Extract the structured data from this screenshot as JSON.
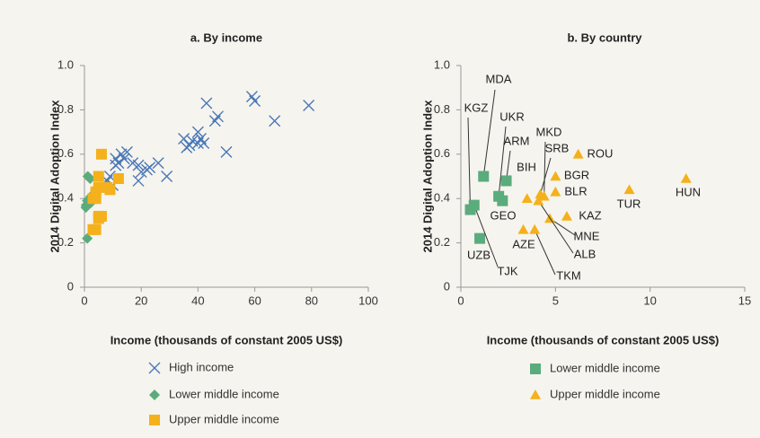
{
  "chart_data": [
    {
      "type": "scatter",
      "title": "a. By income",
      "xlabel": "Income (thousands of constant 2005 US$)",
      "ylabel": "2014 Digital Adoption Index",
      "xlim": [
        0,
        100
      ],
      "xticks": [
        0,
        20,
        40,
        60,
        80,
        100
      ],
      "ylim": [
        0,
        1
      ],
      "yticks": [
        0,
        0.2,
        0.4,
        0.6,
        0.8,
        {
          "value": 1,
          "label": "1.0"
        }
      ],
      "series": [
        {
          "name": "High income",
          "color": "#4a78b8",
          "marker": "x",
          "x": [
            43,
            59,
            60,
            79,
            67,
            47,
            46,
            40,
            35,
            38,
            40,
            41,
            37,
            36,
            42,
            50,
            15,
            13,
            11,
            12,
            11,
            17,
            19,
            22,
            26,
            20,
            19,
            29,
            23,
            9,
            8,
            10,
            14
          ],
          "values": [
            0.83,
            0.86,
            0.84,
            0.82,
            0.75,
            0.77,
            0.75,
            0.7,
            0.67,
            0.66,
            0.65,
            0.67,
            0.64,
            0.63,
            0.65,
            0.61,
            0.61,
            0.6,
            0.58,
            0.56,
            0.55,
            0.56,
            0.55,
            0.53,
            0.56,
            0.52,
            0.48,
            0.5,
            0.54,
            0.5,
            0.48,
            0.46,
            0.58
          ]
        },
        {
          "name": "Lower middle income",
          "color": "#5aac7c",
          "marker": "diamond",
          "x": [
            1,
            0.5,
            0.6,
            1.2,
            2,
            2.3,
            2.2,
            1
          ],
          "values": [
            0.22,
            0.36,
            0.37,
            0.5,
            0.49,
            0.41,
            0.38,
            0.39
          ]
        },
        {
          "name": "Upper middle income",
          "color": "#f4b11b",
          "marker": "square",
          "x": [
            6,
            5,
            5,
            4,
            3,
            4,
            4,
            5,
            5,
            6,
            3,
            4,
            9,
            12,
            8
          ],
          "values": [
            0.6,
            0.5,
            0.45,
            0.42,
            0.4,
            0.4,
            0.43,
            0.32,
            0.31,
            0.32,
            0.26,
            0.26,
            0.44,
            0.49,
            0.45
          ]
        }
      ]
    },
    {
      "type": "scatter",
      "title": "b. By country",
      "xlabel": "Income (thousands of constant 2005 US$)",
      "ylabel": "2014 Digital Adoption Index",
      "xlim": [
        0,
        15
      ],
      "xticks": [
        0,
        5,
        10,
        15
      ],
      "ylim": [
        0,
        1
      ],
      "yticks": [
        0,
        0.2,
        0.4,
        0.6,
        0.8,
        {
          "value": 1,
          "label": "1.0"
        }
      ],
      "series": [
        {
          "name": "Lower middle income",
          "color": "#5aac7c",
          "marker": "square",
          "labels": [
            "KGZ",
            "MDA",
            "UKR",
            "ARM",
            "GEO",
            "UZB",
            "TJK"
          ],
          "x": [
            0.5,
            1.2,
            2.0,
            2.4,
            2.2,
            1.0,
            0.7
          ],
          "values": [
            0.35,
            0.5,
            0.41,
            0.48,
            0.39,
            0.22,
            0.37
          ]
        },
        {
          "name": "Upper middle income",
          "color": "#f4b11b",
          "marker": "triangle",
          "labels": [
            "ROU",
            "HUN",
            "TUR",
            "BGR",
            "BLR",
            "SRB",
            "BIH",
            "MKD",
            "KAZ",
            "MNE",
            "ALB",
            "AZE",
            "TKM"
          ],
          "x": [
            6.2,
            11.9,
            8.9,
            5.0,
            5.0,
            4.2,
            3.5,
            4.4,
            5.6,
            4.7,
            4.1,
            3.3,
            3.9
          ],
          "values": [
            0.6,
            0.49,
            0.44,
            0.5,
            0.43,
            0.42,
            0.4,
            0.41,
            0.32,
            0.31,
            0.39,
            0.26,
            0.26
          ]
        }
      ]
    }
  ]
}
